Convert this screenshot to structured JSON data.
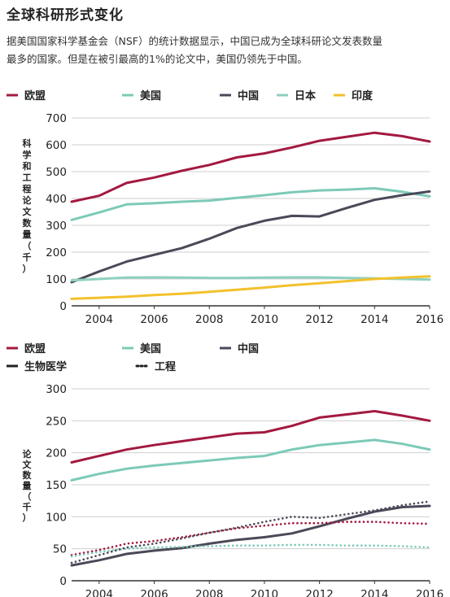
{
  "page": {
    "title": "全球科研形式变化",
    "intro_line1": "据美国国家科学基金会（NSF）的统计数据显示，中国已成为全球科研论文发表数量",
    "intro_line2": "最多的国家。但是在被引最高的1%的论文中，美国仍领先于中国。"
  },
  "colors": {
    "eu": "#a3193f",
    "us": "#7ccab8",
    "cn": "#4a4958",
    "jp": "#8fd0bf",
    "in": "#f3c12c"
  },
  "chart_data": [
    {
      "type": "line",
      "ylabel": "科学和工程论文数量（千）",
      "ylim": [
        0,
        700
      ],
      "yticks": [
        "0",
        "100",
        "200",
        "300",
        "400",
        "500",
        "600",
        "700"
      ],
      "xlim": [
        2003,
        2016
      ],
      "xticks": [
        "2004",
        "2006",
        "2008",
        "2010",
        "2012",
        "2014",
        "2016"
      ],
      "grid": true,
      "legend_position": "top",
      "x": [
        2003,
        2004,
        2005,
        2006,
        2007,
        2008,
        2009,
        2010,
        2011,
        2012,
        2013,
        2014,
        2015,
        2016
      ],
      "series": [
        {
          "name": "欧盟",
          "key": "eu",
          "values": [
            388,
            410,
            458,
            478,
            503,
            525,
            553,
            568,
            590,
            615,
            630,
            645,
            632,
            612
          ]
        },
        {
          "name": "美国",
          "key": "us",
          "values": [
            320,
            348,
            378,
            382,
            388,
            392,
            402,
            412,
            423,
            430,
            433,
            438,
            425,
            408
          ]
        },
        {
          "name": "中国",
          "key": "cn",
          "values": [
            88,
            128,
            165,
            190,
            215,
            250,
            290,
            317,
            335,
            333,
            365,
            395,
            412,
            426
          ]
        },
        {
          "name": "日本",
          "key": "jp",
          "values": [
            95,
            100,
            105,
            106,
            105,
            104,
            104,
            105,
            106,
            106,
            104,
            102,
            100,
            98
          ]
        },
        {
          "name": "印度",
          "key": "in",
          "values": [
            26,
            30,
            34,
            40,
            45,
            52,
            60,
            68,
            77,
            84,
            92,
            100,
            105,
            110
          ]
        }
      ]
    },
    {
      "type": "line",
      "ylabel": "论文数量（千）",
      "ylim": [
        0,
        300
      ],
      "yticks": [
        "0",
        "50",
        "100",
        "150",
        "200",
        "250",
        "300"
      ],
      "xlim": [
        2003,
        2016
      ],
      "xticks": [
        "2004",
        "2006",
        "2008",
        "2010",
        "2012",
        "2014",
        "2016"
      ],
      "grid": true,
      "legend_position": "top",
      "x": [
        2003,
        2004,
        2005,
        2006,
        2007,
        2008,
        2009,
        2010,
        2011,
        2012,
        2013,
        2014,
        2015,
        2016
      ],
      "legend": [
        {
          "name": "欧盟",
          "key": "eu",
          "style": "solid"
        },
        {
          "name": "美国",
          "key": "us",
          "style": "solid"
        },
        {
          "name": "中国",
          "key": "cn",
          "style": "solid"
        },
        {
          "name": "生物医学",
          "style": "solid",
          "color": "#222222"
        },
        {
          "name": "工程",
          "style": "dotted",
          "color": "#222222"
        }
      ],
      "series": [
        {
          "key": "eu",
          "style": "solid",
          "values": [
            185,
            195,
            205,
            212,
            218,
            224,
            230,
            232,
            242,
            255,
            260,
            265,
            258,
            250
          ]
        },
        {
          "key": "us",
          "style": "solid",
          "values": [
            157,
            167,
            175,
            180,
            184,
            188,
            192,
            195,
            205,
            212,
            216,
            220,
            214,
            205
          ]
        },
        {
          "key": "cn",
          "style": "solid",
          "values": [
            24,
            32,
            42,
            47,
            51,
            58,
            64,
            68,
            74,
            85,
            97,
            108,
            115,
            117
          ]
        },
        {
          "key": "eu",
          "style": "dotted",
          "values": [
            40,
            48,
            58,
            62,
            68,
            75,
            82,
            86,
            90,
            90,
            92,
            92,
            90,
            89
          ]
        },
        {
          "key": "us",
          "style": "dotted",
          "values": [
            38,
            45,
            50,
            52,
            53,
            54,
            55,
            55,
            56,
            56,
            55,
            55,
            54,
            52
          ]
        },
        {
          "key": "cn",
          "style": "dotted",
          "values": [
            28,
            40,
            52,
            58,
            66,
            75,
            83,
            92,
            100,
            98,
            104,
            110,
            118,
            124
          ]
        }
      ]
    }
  ]
}
